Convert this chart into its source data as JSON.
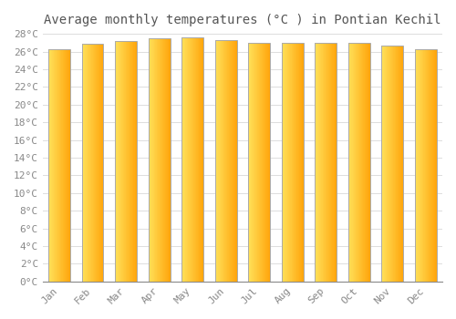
{
  "title": "Average monthly temperatures (°C ) in Pontian Kechil",
  "months": [
    "Jan",
    "Feb",
    "Mar",
    "Apr",
    "May",
    "Jun",
    "Jul",
    "Aug",
    "Sep",
    "Oct",
    "Nov",
    "Dec"
  ],
  "values": [
    26.3,
    26.9,
    27.2,
    27.5,
    27.6,
    27.3,
    27.0,
    27.0,
    27.0,
    27.0,
    26.7,
    26.3
  ],
  "bar_color_left": "#FFE060",
  "bar_color_right": "#FFA500",
  "bar_border_color": "#AAAAAA",
  "ylim": [
    0,
    28
  ],
  "ytick_step": 2,
  "background_color": "#ffffff",
  "plot_bg_color": "#ffffff",
  "grid_color": "#dddddd",
  "title_fontsize": 10,
  "tick_fontsize": 8,
  "font_family": "monospace"
}
